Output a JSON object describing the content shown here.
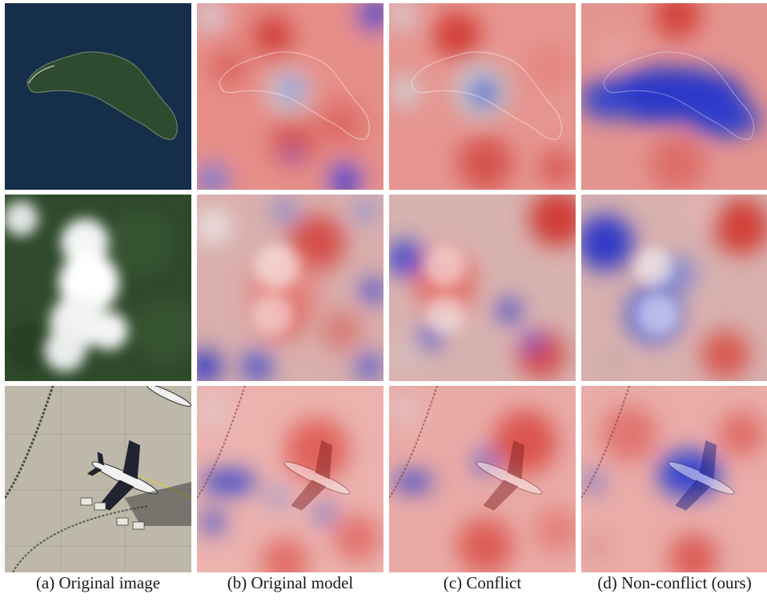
{
  "captions": {
    "a": "(a) Original image",
    "b": "(b) Original model",
    "c": "(c) Conflict",
    "d": "(d) Non-conflict (ours)"
  },
  "colors": {
    "heat_high": "#d62728",
    "heat_low": "#1f2fd0",
    "sea": "#0f2a45",
    "forest": "#2f4a2c"
  }
}
